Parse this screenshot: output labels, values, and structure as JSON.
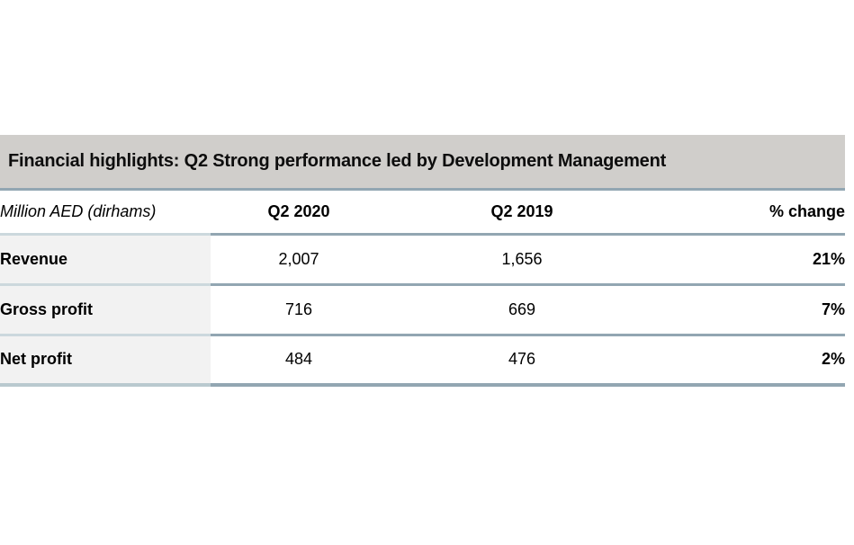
{
  "banner": {
    "title": "Financial highlights: Q2 Strong performance led by Development Management"
  },
  "table": {
    "columns": {
      "unit": "Million AED (dirhams)",
      "col2": "Q2 2020",
      "col3": "Q2 2019",
      "col4": "% change"
    },
    "rows": [
      {
        "label": "Revenue",
        "q2_2020": "2,007",
        "q2_2019": "1,656",
        "pct_change": "21%"
      },
      {
        "label": "Gross profit",
        "q2_2020": "716",
        "q2_2019": "669",
        "pct_change": "7%"
      },
      {
        "label": "Net profit",
        "q2_2020": "484",
        "q2_2019": "476",
        "pct_change": "2%"
      }
    ]
  },
  "colors": {
    "banner_background": "#d0cecb",
    "row_border": "#92a6b2",
    "label_column_border": "#ccd8dd",
    "label_column_background": "#f2f2f2",
    "text": "#000000"
  }
}
